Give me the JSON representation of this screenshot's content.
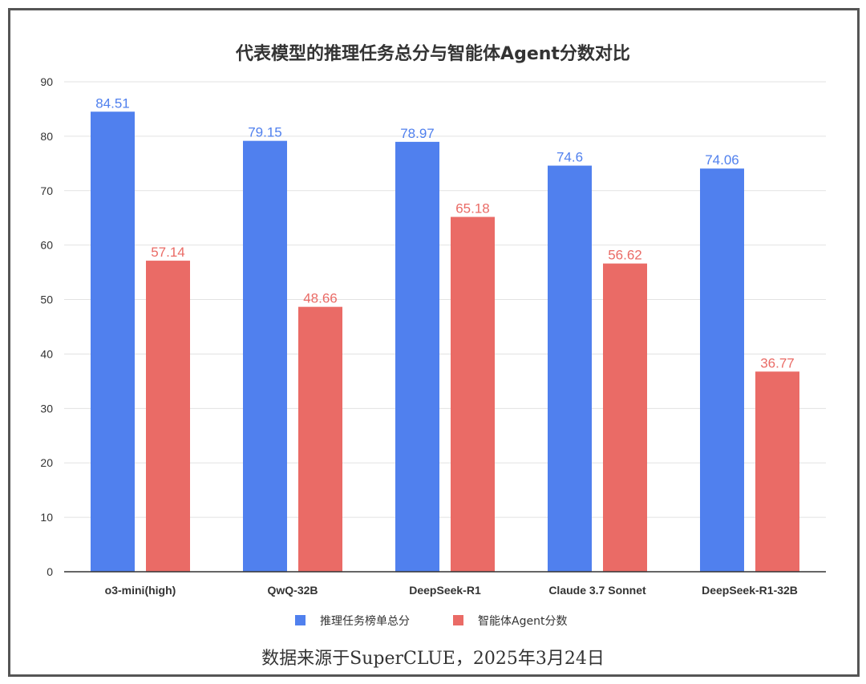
{
  "chart_data": {
    "type": "bar",
    "title": "代表模型的推理任务总分与智能体Agent分数对比",
    "categories": [
      "o3-mini(high)",
      "QwQ-32B",
      "DeepSeek-R1",
      "Claude 3.7 Sonnet",
      "DeepSeek-R1-32B"
    ],
    "series": [
      {
        "name": "推理任务榜单总分",
        "color": "#5080EE",
        "values": [
          84.51,
          79.15,
          78.97,
          74.6,
          74.06
        ],
        "labels": [
          "84.51",
          "79.15",
          "78.97",
          "74.6",
          "74.06"
        ]
      },
      {
        "name": "智能体Agent分数",
        "color": "#EA6B66",
        "values": [
          57.14,
          48.66,
          65.18,
          56.62,
          36.77
        ],
        "labels": [
          "57.14",
          "48.66",
          "65.18",
          "56.62",
          "36.77"
        ]
      }
    ],
    "ylim": [
      0,
      90
    ],
    "yticks": [
      "0",
      "10",
      "20",
      "30",
      "40",
      "50",
      "60",
      "70",
      "80",
      "90"
    ],
    "grid": true,
    "legend_position": "bottom"
  },
  "source": "数据来源于SuperCLUE，2025年3月24日"
}
